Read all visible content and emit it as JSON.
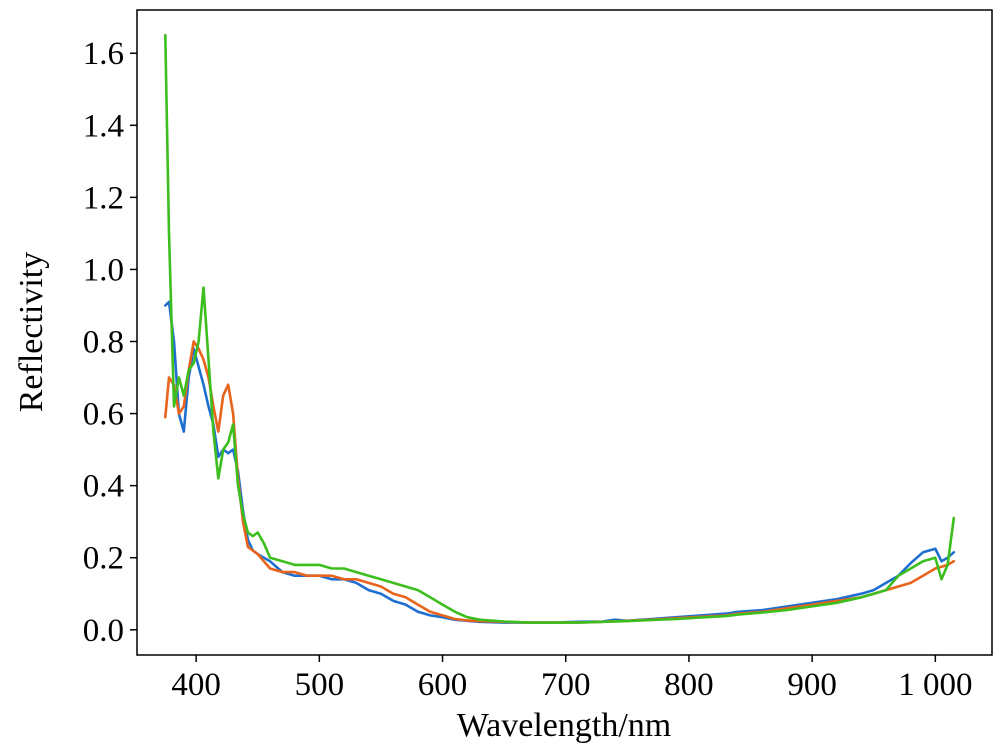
{
  "chart_data": {
    "type": "line",
    "xlabel": "Wavelength/nm",
    "ylabel": "Reflectivity",
    "xlim": [
      352,
      1046
    ],
    "ylim": [
      -0.07,
      1.72
    ],
    "x_ticks": [
      400,
      500,
      600,
      700,
      800,
      900,
      1000
    ],
    "x_tick_labels": [
      "400",
      "500",
      "600",
      "700",
      "800",
      "900",
      "1 000"
    ],
    "y_ticks": [
      0.0,
      0.2,
      0.4,
      0.6,
      0.8,
      1.0,
      1.2,
      1.4,
      1.6
    ],
    "y_tick_labels": [
      "0.0",
      "0.2",
      "0.4",
      "0.6",
      "0.8",
      "1.0",
      "1.2",
      "1.4",
      "1.6"
    ],
    "grid": false,
    "legend": "none",
    "series": [
      {
        "color": "#1f6fd1",
        "x": [
          375,
          378,
          382,
          386,
          390,
          394,
          398,
          402,
          406,
          410,
          414,
          418,
          422,
          426,
          430,
          434,
          438,
          442,
          446,
          450,
          455,
          460,
          470,
          480,
          490,
          500,
          510,
          520,
          530,
          540,
          550,
          560,
          570,
          580,
          590,
          600,
          610,
          620,
          630,
          650,
          670,
          690,
          710,
          730,
          740,
          750,
          770,
          790,
          810,
          830,
          840,
          860,
          880,
          900,
          920,
          940,
          950,
          960,
          970,
          980,
          990,
          1000,
          1005,
          1010,
          1015
        ],
        "y": [
          0.9,
          0.91,
          0.8,
          0.6,
          0.55,
          0.7,
          0.78,
          0.73,
          0.68,
          0.62,
          0.57,
          0.48,
          0.5,
          0.49,
          0.5,
          0.44,
          0.33,
          0.25,
          0.22,
          0.21,
          0.2,
          0.19,
          0.16,
          0.15,
          0.15,
          0.15,
          0.14,
          0.14,
          0.13,
          0.11,
          0.1,
          0.08,
          0.07,
          0.05,
          0.04,
          0.035,
          0.028,
          0.025,
          0.022,
          0.02,
          0.02,
          0.02,
          0.022,
          0.023,
          0.028,
          0.025,
          0.03,
          0.035,
          0.04,
          0.045,
          0.05,
          0.055,
          0.065,
          0.075,
          0.085,
          0.1,
          0.11,
          0.13,
          0.15,
          0.185,
          0.215,
          0.225,
          0.19,
          0.2,
          0.215
        ]
      },
      {
        "color": "#e8641c",
        "x": [
          375,
          378,
          382,
          386,
          390,
          394,
          398,
          402,
          406,
          410,
          414,
          418,
          422,
          426,
          430,
          434,
          438,
          442,
          446,
          450,
          455,
          460,
          470,
          480,
          490,
          500,
          510,
          520,
          530,
          540,
          550,
          560,
          570,
          580,
          590,
          600,
          610,
          620,
          630,
          650,
          670,
          690,
          710,
          730,
          750,
          770,
          790,
          810,
          830,
          840,
          860,
          880,
          900,
          920,
          940,
          950,
          960,
          970,
          980,
          990,
          1000,
          1005,
          1010,
          1015
        ],
        "y": [
          0.59,
          0.7,
          0.68,
          0.6,
          0.62,
          0.72,
          0.8,
          0.78,
          0.75,
          0.7,
          0.62,
          0.55,
          0.65,
          0.68,
          0.6,
          0.42,
          0.3,
          0.23,
          0.22,
          0.21,
          0.19,
          0.17,
          0.16,
          0.16,
          0.15,
          0.15,
          0.15,
          0.14,
          0.14,
          0.13,
          0.12,
          0.1,
          0.09,
          0.07,
          0.05,
          0.04,
          0.03,
          0.026,
          0.024,
          0.022,
          0.02,
          0.02,
          0.02,
          0.022,
          0.025,
          0.028,
          0.032,
          0.036,
          0.04,
          0.045,
          0.05,
          0.06,
          0.07,
          0.08,
          0.09,
          0.1,
          0.11,
          0.12,
          0.13,
          0.15,
          0.17,
          0.175,
          0.18,
          0.19
        ]
      },
      {
        "color": "#3cbf1e",
        "x": [
          375,
          378,
          382,
          386,
          390,
          394,
          398,
          402,
          406,
          410,
          414,
          418,
          422,
          426,
          430,
          434,
          438,
          442,
          446,
          450,
          455,
          460,
          470,
          480,
          490,
          500,
          510,
          520,
          530,
          540,
          550,
          560,
          570,
          580,
          590,
          600,
          610,
          620,
          630,
          650,
          670,
          690,
          710,
          730,
          750,
          770,
          790,
          810,
          830,
          840,
          860,
          880,
          900,
          920,
          940,
          950,
          960,
          970,
          980,
          990,
          1000,
          1005,
          1010,
          1015
        ],
        "y": [
          1.65,
          1.1,
          0.62,
          0.7,
          0.65,
          0.72,
          0.74,
          0.8,
          0.95,
          0.75,
          0.55,
          0.42,
          0.5,
          0.52,
          0.57,
          0.4,
          0.32,
          0.27,
          0.26,
          0.27,
          0.24,
          0.2,
          0.19,
          0.18,
          0.18,
          0.18,
          0.17,
          0.17,
          0.16,
          0.15,
          0.14,
          0.13,
          0.12,
          0.11,
          0.09,
          0.07,
          0.05,
          0.035,
          0.028,
          0.023,
          0.02,
          0.02,
          0.02,
          0.022,
          0.024,
          0.027,
          0.03,
          0.034,
          0.038,
          0.042,
          0.048,
          0.055,
          0.065,
          0.075,
          0.09,
          0.1,
          0.11,
          0.15,
          0.17,
          0.19,
          0.2,
          0.14,
          0.18,
          0.31
        ]
      }
    ]
  }
}
